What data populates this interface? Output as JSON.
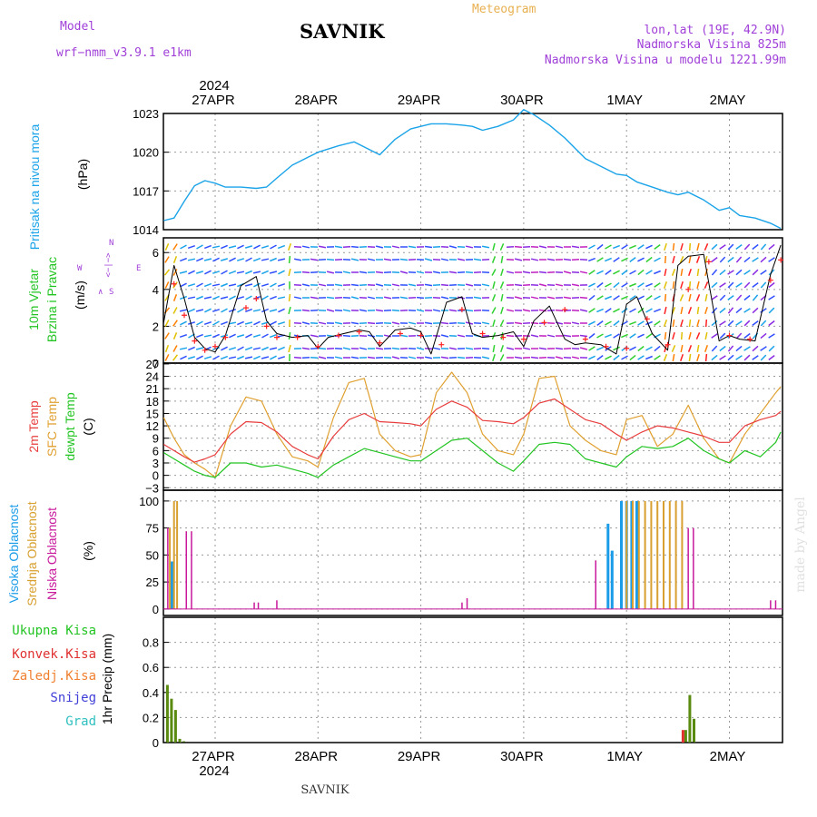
{
  "header": {
    "model_label": "Model",
    "model_name": "wrf−nmm_v3.9.1  e1km",
    "title": "SAVNIK",
    "product": "Meteogram",
    "lonlat": "lon,lat (19E, 42.9N)",
    "elevation": "Nadmorska Visina 825m",
    "model_elevation": "Nadmorska Visina u modelu 1221.99m",
    "footer_station": "SAVNIK",
    "credit": "made by Angel"
  },
  "colors": {
    "pressure": "#1aa3e8",
    "wind_speed": "#000000",
    "gust": "#ff2020",
    "t2m": "#e83c3c",
    "tsfc": "#e0a030",
    "dewpt": "#22c422",
    "cloud_high": "#1a9ce8",
    "cloud_mid": "#d8a030",
    "cloud_low": "#c8189c",
    "precip_total": "#5a8a10",
    "precip_conv": "#e03030",
    "precip_frz": "#f08030",
    "precip_snow": "#4040d8",
    "precip_graupel": "#30c0c0",
    "header_purple": "#a040d8",
    "header_orange": "#e8b050"
  },
  "time_axis": {
    "year": "2024",
    "day_labels": [
      "27APR",
      "28APR",
      "29APR",
      "30APR",
      "1MAY",
      "2MAY"
    ]
  },
  "panels": {
    "pressure": {
      "ylabel": "Pritisak na nivou mora",
      "unit": "(hPa)",
      "ticks": [
        "1014",
        "1017",
        "1020",
        "1023"
      ]
    },
    "wind": {
      "ylabel1": "10m Vjetar",
      "ylabel2": "Brzina i Pravac",
      "unit": "(m/s)",
      "ticks": [
        "0",
        "2",
        "4",
        "6"
      ],
      "compass_n": "N",
      "compass_w": "W",
      "compass_e": "E",
      "compass_s": "S",
      "compass_mid": "<−|−>",
      "compass_arrow": "∧"
    },
    "temperature": {
      "label_t2m": "2m Temp",
      "label_tsfc": "SFC Temp",
      "label_dewpt": "dewpt Temp",
      "unit": "(C)",
      "ticks": [
        "−3",
        "0",
        "3",
        "6",
        "9",
        "12",
        "15",
        "18",
        "21",
        "24",
        "27"
      ]
    },
    "cloud": {
      "label_high": "Visoka Oblacnost",
      "label_mid": "Srednja Oblacnost",
      "label_low": "Niska Oblacnost",
      "unit": "(%)",
      "ticks": [
        "0",
        "25",
        "50",
        "75",
        "100"
      ]
    },
    "precip": {
      "label_total": "Ukupna Kisa",
      "label_conv": "Konvek.Kisa",
      "label_frz": "Zaledj.Kisa",
      "label_snow": "Snijeg",
      "label_graupel": "Grad",
      "ylabel": "1hr Precip (mm)",
      "ticks": [
        "0",
        "0.2",
        "0.4",
        "0.6",
        "0.8"
      ]
    }
  },
  "chart_data": [
    {
      "type": "line",
      "title": "Pritisak na nivou mora",
      "ylabel": "(hPa)",
      "ylim": [
        1014,
        1023
      ],
      "x_unit": "days from 27APR 00",
      "series": [
        {
          "x": [
            -0.5,
            -0.4,
            -0.3,
            -0.2,
            -0.1,
            0,
            0.1,
            0.25,
            0.4,
            0.5,
            0.6,
            0.75,
            0.9,
            1.0,
            1.2,
            1.35,
            1.5,
            1.6,
            1.75,
            1.9,
            2.0,
            2.1,
            2.25,
            2.4,
            2.5,
            2.6,
            2.75,
            2.9,
            3.0,
            3.1,
            3.25,
            3.4,
            3.5,
            3.6,
            3.75,
            3.9,
            4.0,
            4.1,
            4.25,
            4.4,
            4.5,
            4.6,
            4.75,
            4.9,
            5.0,
            5.1,
            5.25,
            5.4,
            5.5
          ],
          "values": [
            1014.7,
            1014.9,
            1016.2,
            1017.4,
            1017.8,
            1017.6,
            1017.3,
            1017.3,
            1017.2,
            1017.3,
            1018.0,
            1019.0,
            1019.6,
            1020.0,
            1020.5,
            1020.8,
            1020.2,
            1019.8,
            1021.0,
            1021.8,
            1022.0,
            1022.2,
            1022.2,
            1022.1,
            1022.0,
            1021.7,
            1022.0,
            1022.5,
            1023.3,
            1022.9,
            1022.1,
            1021.1,
            1020.3,
            1019.5,
            1018.9,
            1018.3,
            1018.2,
            1017.7,
            1017.3,
            1016.9,
            1016.7,
            1016.9,
            1016.3,
            1015.5,
            1015.7,
            1015.1,
            1014.9,
            1014.5,
            1014.1
          ]
        }
      ]
    },
    {
      "type": "line",
      "title": "10m Vjetar Brzina i Pravac",
      "ylabel": "(m/s)",
      "ylim": [
        0,
        7
      ],
      "x_unit": "days from 27APR 00",
      "series": [
        {
          "name": "speed",
          "x": [
            -0.5,
            -0.4,
            -0.3,
            -0.2,
            -0.1,
            0,
            0.1,
            0.25,
            0.4,
            0.5,
            0.6,
            0.75,
            0.9,
            1.0,
            1.1,
            1.25,
            1.4,
            1.5,
            1.6,
            1.75,
            1.9,
            2.0,
            2.1,
            2.25,
            2.4,
            2.5,
            2.6,
            2.75,
            2.9,
            3.0,
            3.1,
            3.25,
            3.4,
            3.5,
            3.6,
            3.75,
            3.9,
            4.0,
            4.1,
            4.25,
            4.4,
            4.5,
            4.6,
            4.75,
            4.9,
            5.0,
            5.1,
            5.25,
            5.4,
            5.5
          ],
          "values": [
            2.2,
            5.3,
            3.5,
            1.4,
            0.8,
            0.6,
            1.5,
            4.2,
            4.7,
            2.3,
            1.6,
            1.4,
            1.5,
            0.8,
            1.4,
            1.6,
            1.8,
            1.7,
            0.9,
            1.8,
            1.9,
            1.7,
            0.5,
            3.3,
            3.6,
            1.6,
            1.4,
            1.5,
            1.7,
            0.9,
            2.3,
            3.1,
            1.3,
            1.0,
            1.1,
            1.0,
            0.5,
            3.2,
            3.6,
            1.6,
            0.7,
            5.3,
            5.8,
            5.9,
            1.2,
            1.5,
            1.3,
            1.2,
            4.8,
            6.4
          ]
        },
        {
          "name": "gust",
          "x": [
            -0.4,
            -0.3,
            -0.2,
            -0.1,
            0,
            0.1,
            0.3,
            0.4,
            0.5,
            0.6,
            0.8,
            1.0,
            1.2,
            1.4,
            1.6,
            1.8,
            2.0,
            2.2,
            2.4,
            2.6,
            2.8,
            3.0,
            3.2,
            3.4,
            3.6,
            3.8,
            4.0,
            4.2,
            4.4,
            4.6,
            4.8,
            5.0,
            5.2,
            5.4,
            5.5
          ],
          "values": [
            4.3,
            2.6,
            1.2,
            0.7,
            0.9,
            1.4,
            3.0,
            3.5,
            2.0,
            1.4,
            1.4,
            0.9,
            1.5,
            1.7,
            1.1,
            1.6,
            1.5,
            1.0,
            2.9,
            1.6,
            1.4,
            1.3,
            2.2,
            2.9,
            1.3,
            0.9,
            0.8,
            2.4,
            1.0,
            4.0,
            5.5,
            1.5,
            1.3,
            4.5,
            5.6
          ]
        }
      ]
    },
    {
      "type": "line",
      "title": "Temperatura",
      "ylabel": "(C)",
      "ylim": [
        -3,
        27
      ],
      "x_unit": "days from 27APR 00",
      "series": [
        {
          "name": "2m Temp",
          "x": [
            -0.5,
            -0.4,
            -0.3,
            -0.2,
            -0.1,
            0,
            0.15,
            0.3,
            0.45,
            0.6,
            0.75,
            0.9,
            1.0,
            1.15,
            1.3,
            1.45,
            1.6,
            1.75,
            1.9,
            2.0,
            2.15,
            2.3,
            2.45,
            2.6,
            2.75,
            2.9,
            3.0,
            3.15,
            3.3,
            3.45,
            3.6,
            3.75,
            3.9,
            4.0,
            4.15,
            4.3,
            4.45,
            4.6,
            4.75,
            4.9,
            5.0,
            5.15,
            5.3,
            5.45,
            5.5
          ],
          "values": [
            7.5,
            6.0,
            4.5,
            3.2,
            4.0,
            5.0,
            10.0,
            13.0,
            12.8,
            10.5,
            7.0,
            5.0,
            4.0,
            9.5,
            13.5,
            15.0,
            13.0,
            12.8,
            12.5,
            12.0,
            16.0,
            18.0,
            16.5,
            13.3,
            13.0,
            12.5,
            14.0,
            17.5,
            18.5,
            16.0,
            13.5,
            12.5,
            10.0,
            8.5,
            10.5,
            12.0,
            11.5,
            10.5,
            9.5,
            8.0,
            8.0,
            12.0,
            13.5,
            14.5,
            15.5
          ]
        },
        {
          "name": "SFC Temp",
          "x": [
            -0.5,
            -0.4,
            -0.3,
            -0.2,
            -0.1,
            0,
            0.15,
            0.3,
            0.45,
            0.6,
            0.75,
            0.9,
            1.0,
            1.15,
            1.3,
            1.45,
            1.6,
            1.75,
            1.9,
            2.0,
            2.15,
            2.3,
            2.45,
            2.6,
            2.75,
            2.9,
            3.0,
            3.15,
            3.3,
            3.45,
            3.6,
            3.75,
            3.9,
            4.0,
            4.15,
            4.3,
            4.45,
            4.6,
            4.75,
            4.9,
            5.0,
            5.15,
            5.3,
            5.45,
            5.5
          ],
          "values": [
            14.0,
            9.0,
            5.0,
            3.0,
            1.5,
            -0.5,
            12.0,
            19.0,
            18.0,
            10.0,
            4.5,
            3.5,
            2.0,
            14.0,
            22.5,
            23.5,
            10.0,
            6.0,
            4.5,
            5.0,
            20.0,
            25.0,
            20.0,
            10.0,
            6.0,
            5.0,
            10.0,
            23.5,
            24.0,
            12.0,
            8.5,
            6.0,
            5.0,
            13.5,
            14.5,
            7.0,
            10.0,
            17.0,
            9.0,
            4.0,
            3.0,
            10.0,
            15.0,
            20.0,
            21.5
          ]
        },
        {
          "name": "dewpt Temp",
          "x": [
            -0.5,
            -0.4,
            -0.3,
            -0.2,
            -0.1,
            0,
            0.15,
            0.3,
            0.45,
            0.6,
            0.75,
            0.9,
            1.0,
            1.15,
            1.3,
            1.45,
            1.6,
            1.75,
            1.9,
            2.0,
            2.15,
            2.3,
            2.45,
            2.6,
            2.75,
            2.9,
            3.0,
            3.15,
            3.3,
            3.45,
            3.6,
            3.75,
            3.9,
            4.0,
            4.15,
            4.3,
            4.45,
            4.6,
            4.75,
            4.9,
            5.0,
            5.15,
            5.3,
            5.45,
            5.5
          ],
          "values": [
            5.5,
            4.0,
            2.5,
            1.0,
            0.0,
            -0.5,
            3.0,
            3.0,
            2.0,
            2.5,
            1.5,
            0.5,
            -0.5,
            2.5,
            4.5,
            6.5,
            5.5,
            4.5,
            3.5,
            3.5,
            6.0,
            8.5,
            9.0,
            6.0,
            3.0,
            1.0,
            3.5,
            7.5,
            8.0,
            7.5,
            4.0,
            3.0,
            2.0,
            4.5,
            7.0,
            6.5,
            7.0,
            9.0,
            6.0,
            4.0,
            3.0,
            6.0,
            4.5,
            8.0,
            10.5
          ]
        }
      ]
    },
    {
      "type": "bar",
      "title": "Oblacnost",
      "ylabel": "(%)",
      "ylim": [
        0,
        100
      ],
      "x_unit": "days from 27APR 00",
      "series": [
        {
          "name": "Visoka Oblacnost",
          "x": [
            -0.42,
            3.82,
            3.86,
            3.95,
            4.0,
            4.05,
            4.1
          ],
          "values": [
            44,
            79,
            54,
            100,
            100,
            100,
            100
          ]
        },
        {
          "name": "Srednja Oblacnost",
          "x": [
            -0.44,
            -0.4,
            -0.37,
            4.0,
            4.06,
            4.12,
            4.18,
            4.24,
            4.3,
            4.36,
            4.42,
            4.48,
            4.54
          ],
          "values": [
            75,
            100,
            100,
            100,
            100,
            100,
            100,
            100,
            100,
            100,
            100,
            100,
            100
          ]
        },
        {
          "name": "Niska Oblacnost",
          "x": [
            -0.46,
            -0.28,
            -0.23,
            0.38,
            0.42,
            0.6,
            2.4,
            2.45,
            3.7,
            4.6,
            4.65,
            5.4,
            5.45
          ],
          "values": [
            75,
            72,
            72,
            6,
            6,
            8,
            6,
            10,
            45,
            75,
            75,
            8,
            8
          ]
        }
      ]
    },
    {
      "type": "bar",
      "title": "1hr Precip",
      "ylabel": "(mm)",
      "ylim": [
        0,
        1.0
      ],
      "x_unit": "days from 27APR 00",
      "series": [
        {
          "name": "Ukupna Kisa",
          "x": [
            -0.46,
            -0.42,
            -0.38,
            -0.34,
            -0.3,
            4.58,
            4.62,
            4.66
          ],
          "values": [
            0.46,
            0.35,
            0.26,
            0.03,
            0.01,
            0.1,
            0.38,
            0.19
          ]
        },
        {
          "name": "Konvek.Kisa",
          "x": [
            4.58
          ],
          "values": [
            0.1
          ]
        }
      ]
    }
  ]
}
